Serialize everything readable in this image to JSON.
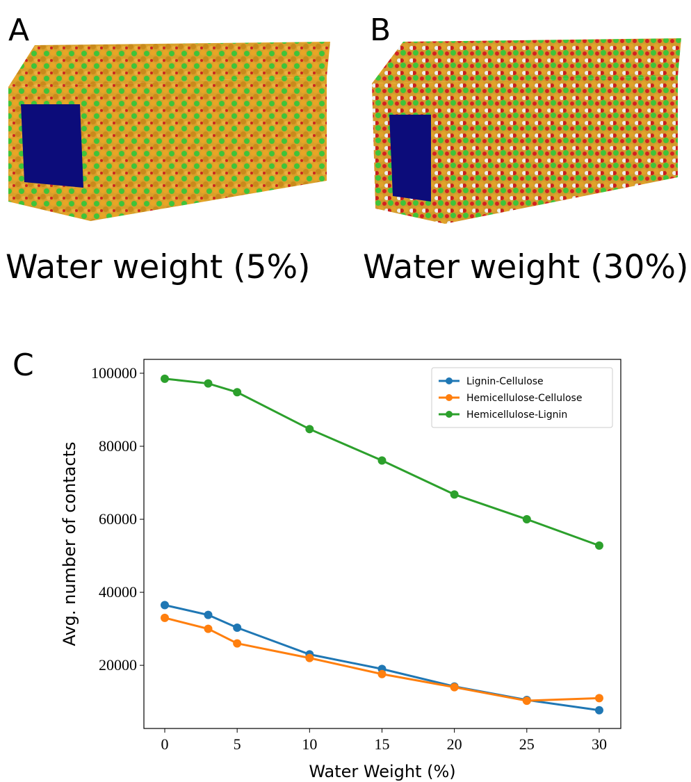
{
  "panels": [
    {
      "label": "A",
      "caption": "Water weight (5%)"
    },
    {
      "label": "B",
      "caption": "Water weight (30%)"
    },
    {
      "label": "C"
    }
  ],
  "chart_data": {
    "type": "line",
    "x_label": "Water Weight (%)",
    "y_label": "Avg. number of contacts",
    "x": [
      0,
      3,
      5,
      10,
      15,
      20,
      25,
      30
    ],
    "series": [
      {
        "name": "Lignin-Cellulose",
        "color": "#1f77b4",
        "values": [
          36500,
          33800,
          30300,
          23000,
          19000,
          14200,
          10500,
          7700
        ]
      },
      {
        "name": "Hemicellulose-Cellulose",
        "color": "#ff7f0e",
        "values": [
          33000,
          30000,
          26000,
          22000,
          17600,
          14000,
          10300,
          11000
        ]
      },
      {
        "name": "Hemicellulose-Lignin",
        "color": "#2ca02c",
        "values": [
          98500,
          97200,
          94800,
          84700,
          76100,
          66800,
          60000,
          52800
        ]
      }
    ],
    "xlim": [
      -1.44,
      31.49
    ],
    "ylim": [
      2700,
      103800
    ],
    "xticks": [
      0,
      5,
      10,
      15,
      20,
      25,
      30
    ],
    "yticks": [
      20000,
      40000,
      60000,
      80000,
      100000
    ],
    "grid": false,
    "legend": "upper right"
  }
}
